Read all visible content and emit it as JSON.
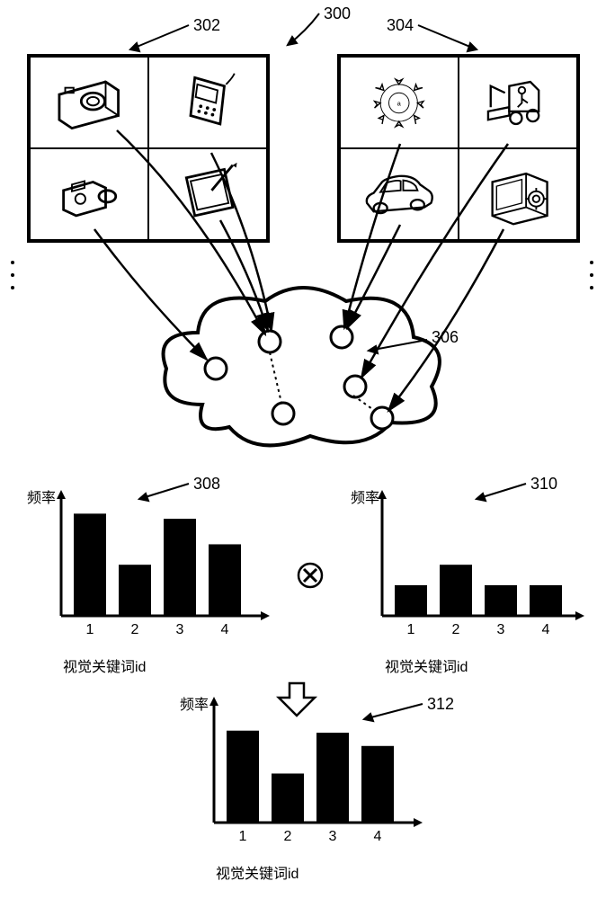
{
  "figure": {
    "refs": {
      "r300": "300",
      "r302": "302",
      "r304": "304",
      "r306": "306",
      "r308": "308",
      "r310": "310",
      "r312": "312"
    },
    "grid_left": {
      "icons": [
        "camera",
        "phone",
        "camcorder",
        "tablet"
      ]
    },
    "grid_right": {
      "icons": [
        "wreath",
        "forklift",
        "car",
        "safe"
      ]
    },
    "cloud": {
      "border_color": "#000000",
      "fill": "#ffffff",
      "node_count": 6
    },
    "chart_axes": {
      "ylabel": "频率",
      "xlabel": "视觉关键词id",
      "xticks": [
        "1",
        "2",
        "3",
        "4"
      ]
    },
    "chart308": {
      "type": "bar",
      "values": [
        100,
        50,
        95,
        70
      ],
      "ymax": 110,
      "bar_color": "#000000"
    },
    "chart310": {
      "type": "bar",
      "values": [
        30,
        50,
        30,
        30
      ],
      "ymax": 110,
      "bar_color": "#000000"
    },
    "chart312": {
      "type": "bar",
      "values": [
        90,
        48,
        88,
        75
      ],
      "ymax": 110,
      "bar_color": "#000000"
    },
    "colors": {
      "stroke": "#000000",
      "bg": "#ffffff"
    }
  }
}
